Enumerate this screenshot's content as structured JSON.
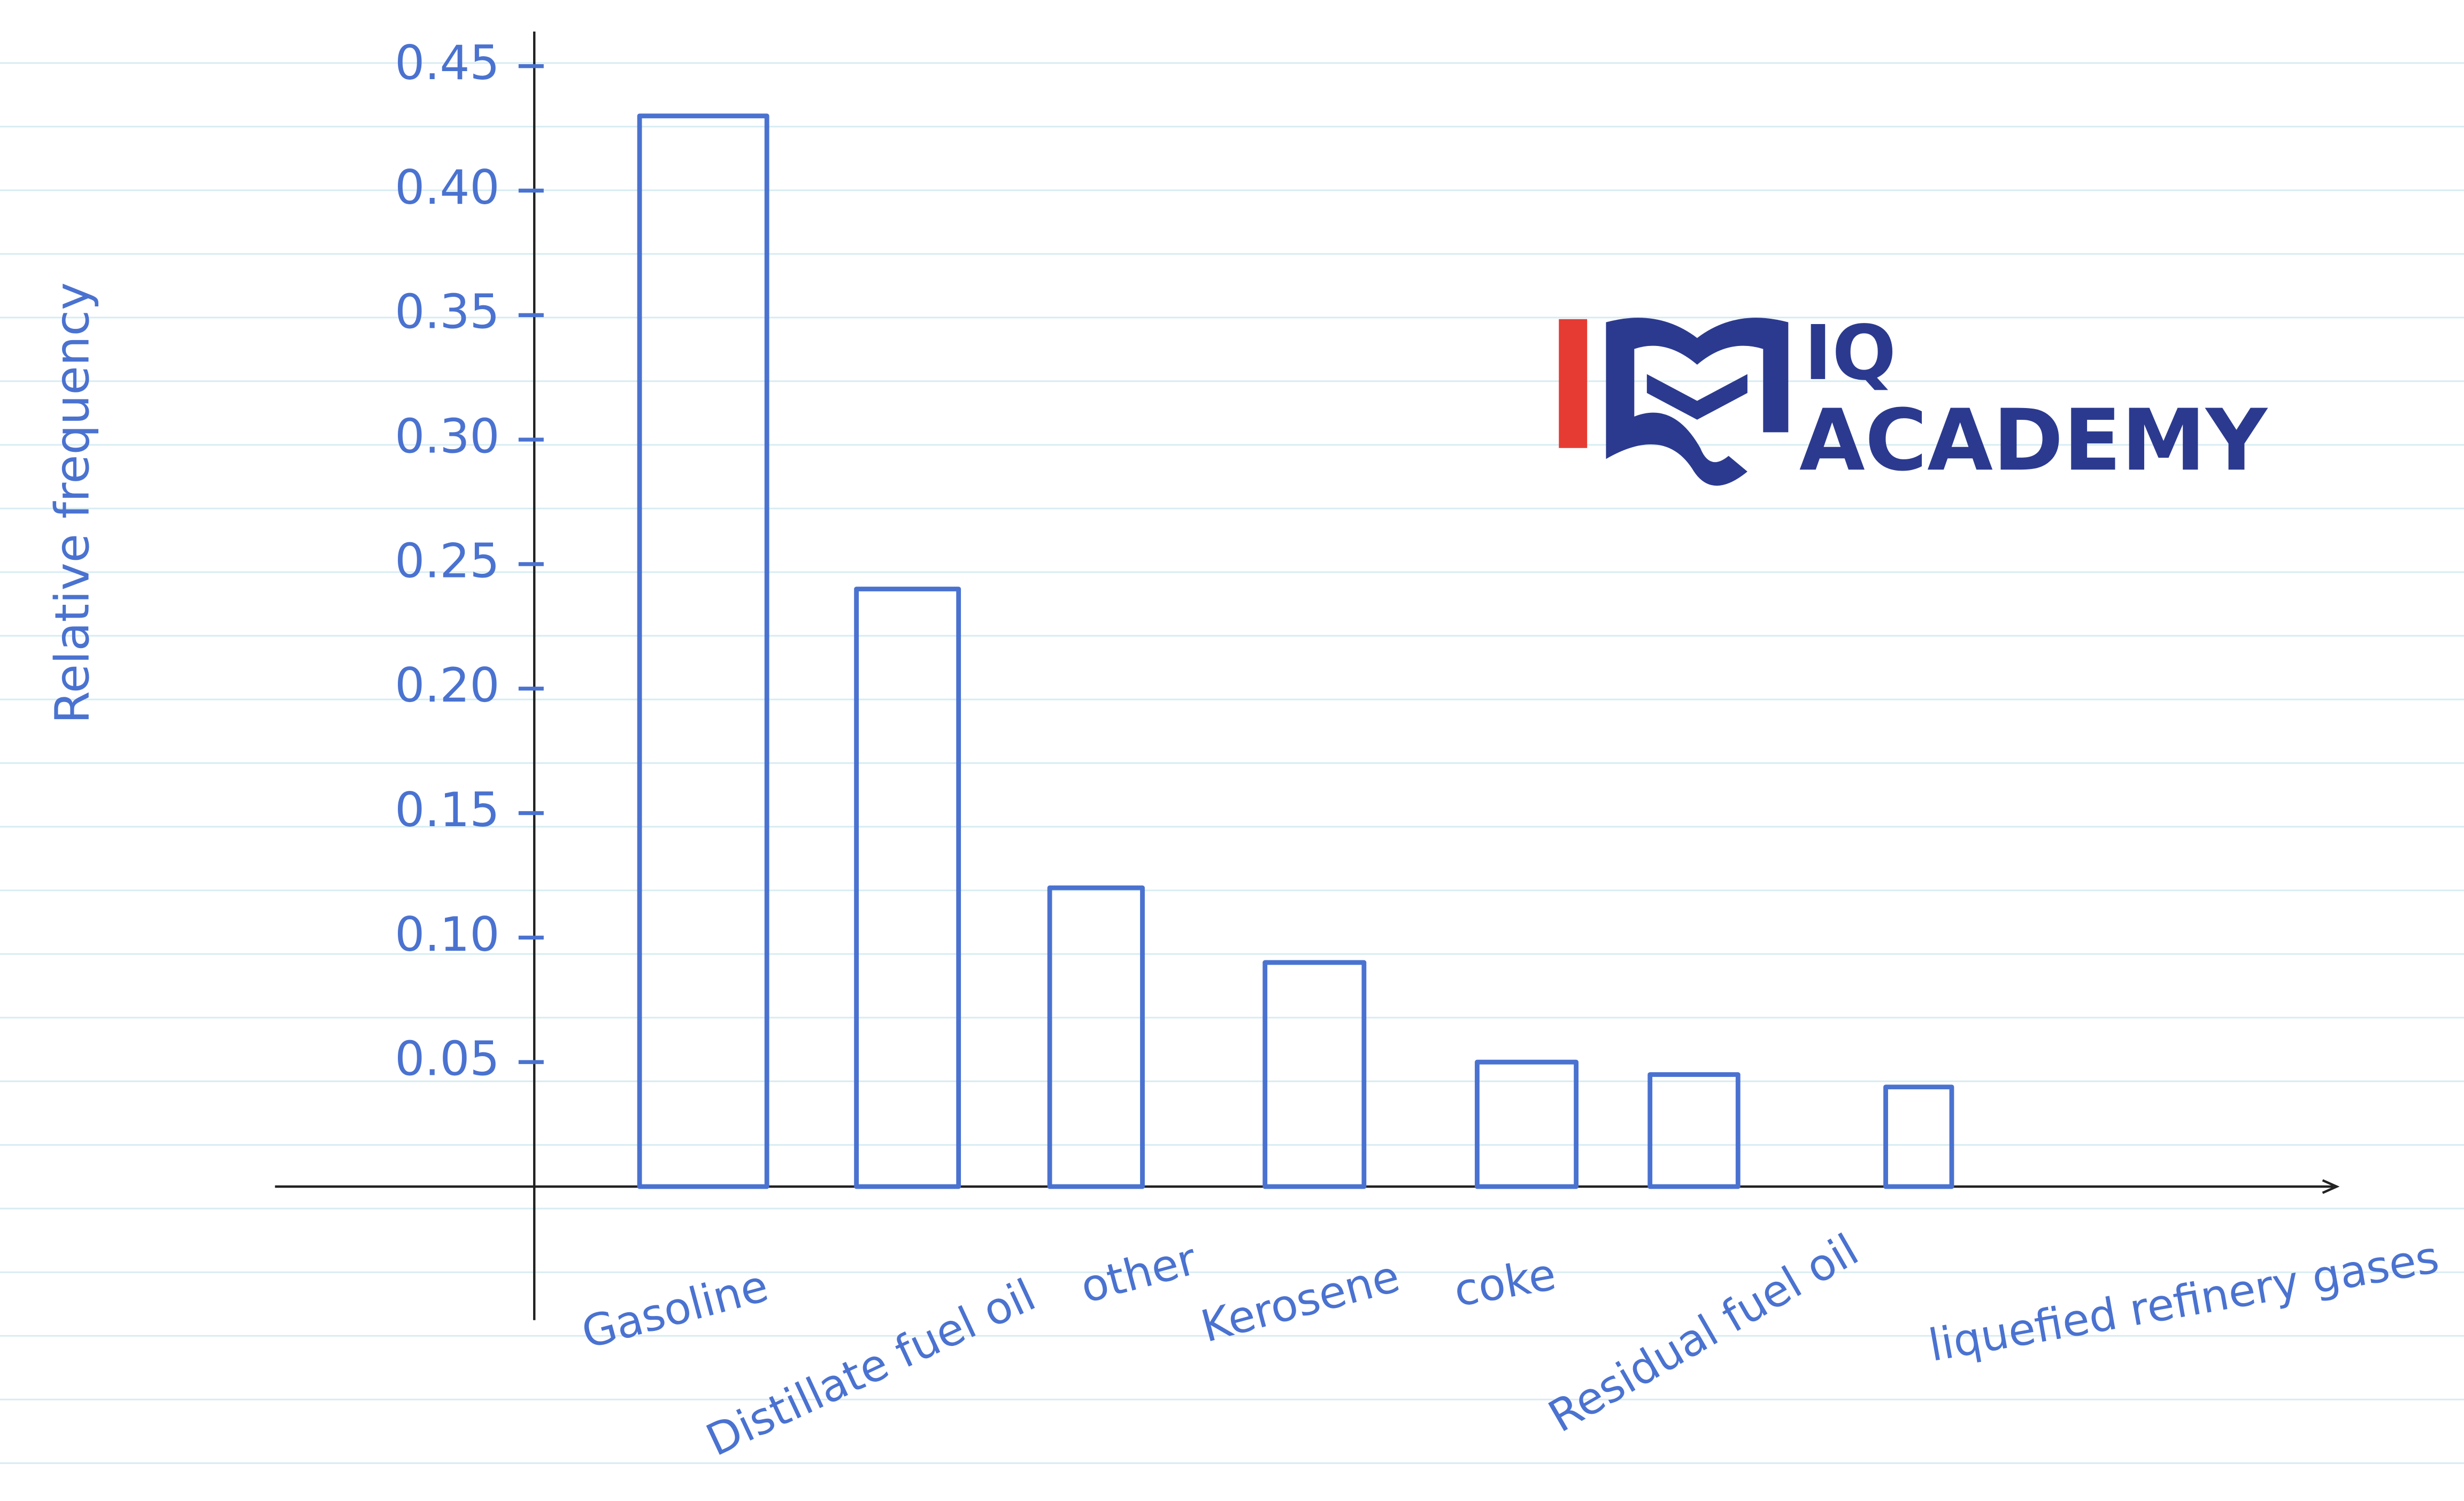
{
  "chart_data": {
    "type": "bar",
    "y_label": "Relative frequency",
    "categories": [
      "Gasoline",
      "Distillate fuel oil",
      "other",
      "Kerosene",
      "coke",
      "Residual fuel oil",
      "liquefied refinery gases"
    ],
    "values": [
      0.43,
      0.24,
      0.12,
      0.09,
      0.05,
      0.045,
      0.04
    ],
    "color": "#4a72d0",
    "ylim": [
      0,
      0.45
    ],
    "yticks": [
      0.05,
      {
        "value": 0.1,
        "label": "0.10"
      },
      0.15,
      {
        "value": 0.2,
        "label": "0.20"
      },
      0.25,
      {
        "value": 0.3,
        "label": "0.30"
      },
      0.35,
      {
        "value": 0.4,
        "label": "0.40"
      },
      0.45
    ]
  },
  "logo": {
    "line1": "IQ",
    "line2": "ACADEMY"
  }
}
